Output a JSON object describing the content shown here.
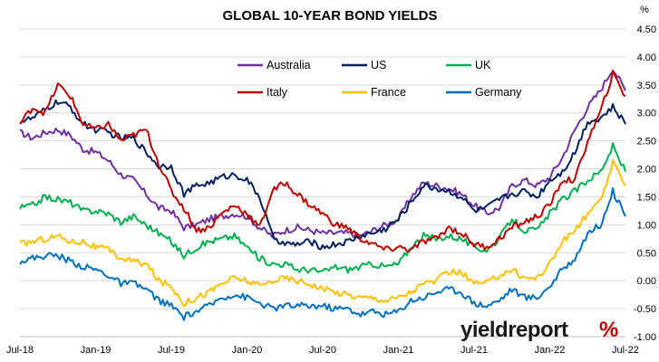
{
  "chart_data": {
    "type": "line",
    "title": "GLOBAL 10-YEAR BOND YIELDS",
    "unit_label": "%",
    "xlabel": "",
    "ylabel": "",
    "ylim": [
      -1.0,
      4.5
    ],
    "y_ticks": [
      -1.0,
      -0.5,
      0.0,
      0.5,
      1.0,
      1.5,
      2.0,
      2.5,
      3.0,
      3.5,
      4.0,
      4.5
    ],
    "y_tick_labels": [
      "-1.00",
      "-0.50",
      "0.00",
      "0.50",
      "1.00",
      "1.50",
      "2.00",
      "2.50",
      "3.00",
      "3.50",
      "4.00",
      "4.50"
    ],
    "x_ticks": [
      "2018-07",
      "2019-01",
      "2019-07",
      "2020-01",
      "2020-07",
      "2021-01",
      "2021-07",
      "2022-01",
      "2022-07"
    ],
    "x_tick_labels": [
      "Jul-18",
      "Jan-19",
      "Jul-19",
      "Jan-20",
      "Jul-20",
      "Jan-21",
      "Jul-21",
      "Jan-22",
      "Jul-22"
    ],
    "x_range": [
      "2018-07",
      "2022-07"
    ],
    "grid": {
      "horizontal": true,
      "vertical": false
    },
    "legend_position": "top-center",
    "x": [
      "2018-07",
      "2018-08",
      "2018-09",
      "2018-10",
      "2018-11",
      "2018-12",
      "2019-01",
      "2019-02",
      "2019-03",
      "2019-04",
      "2019-05",
      "2019-06",
      "2019-07",
      "2019-08",
      "2019-09",
      "2019-10",
      "2019-11",
      "2019-12",
      "2020-01",
      "2020-02",
      "2020-03",
      "2020-04",
      "2020-05",
      "2020-06",
      "2020-07",
      "2020-08",
      "2020-09",
      "2020-10",
      "2020-11",
      "2020-12",
      "2021-01",
      "2021-02",
      "2021-03",
      "2021-04",
      "2021-05",
      "2021-06",
      "2021-07",
      "2021-08",
      "2021-09",
      "2021-10",
      "2021-11",
      "2021-12",
      "2022-01",
      "2022-02",
      "2022-03",
      "2022-04",
      "2022-05",
      "2022-06",
      "2022-07"
    ],
    "series": [
      {
        "name": "Australia",
        "color": "#7030A0",
        "values": [
          2.65,
          2.55,
          2.65,
          2.7,
          2.6,
          2.35,
          2.3,
          2.15,
          1.9,
          1.8,
          1.55,
          1.3,
          1.25,
          0.95,
          1.0,
          1.1,
          1.15,
          1.2,
          1.15,
          0.95,
          0.8,
          0.9,
          0.95,
          0.9,
          0.85,
          0.85,
          0.85,
          0.8,
          0.9,
          1.0,
          1.1,
          1.5,
          1.75,
          1.7,
          1.65,
          1.55,
          1.35,
          1.2,
          1.3,
          1.7,
          1.8,
          1.7,
          1.85,
          2.2,
          2.7,
          3.1,
          3.4,
          3.8,
          3.4
        ]
      },
      {
        "name": "US",
        "color": "#002060",
        "values": [
          2.85,
          2.9,
          3.05,
          3.2,
          3.1,
          2.8,
          2.7,
          2.65,
          2.55,
          2.55,
          2.3,
          2.05,
          2.05,
          1.55,
          1.7,
          1.75,
          1.85,
          1.9,
          1.8,
          1.5,
          0.8,
          0.65,
          0.65,
          0.7,
          0.6,
          0.65,
          0.7,
          0.8,
          0.85,
          0.93,
          1.1,
          1.4,
          1.7,
          1.65,
          1.6,
          1.5,
          1.25,
          1.3,
          1.45,
          1.55,
          1.6,
          1.5,
          1.8,
          1.95,
          2.3,
          2.85,
          2.9,
          3.1,
          2.8
        ]
      },
      {
        "name": "UK",
        "color": "#00B050",
        "values": [
          1.3,
          1.35,
          1.5,
          1.45,
          1.4,
          1.25,
          1.25,
          1.2,
          1.05,
          1.15,
          1.0,
          0.85,
          0.7,
          0.45,
          0.6,
          0.7,
          0.75,
          0.8,
          0.6,
          0.4,
          0.3,
          0.3,
          0.2,
          0.2,
          0.15,
          0.25,
          0.2,
          0.25,
          0.3,
          0.25,
          0.3,
          0.6,
          0.8,
          0.75,
          0.8,
          0.75,
          0.6,
          0.55,
          0.75,
          1.1,
          0.9,
          0.9,
          1.2,
          1.45,
          1.6,
          1.8,
          1.95,
          2.4,
          1.95
        ]
      },
      {
        "name": "Italy",
        "color": "#C00000",
        "values": [
          2.8,
          3.1,
          3.0,
          3.5,
          3.3,
          2.8,
          2.7,
          2.8,
          2.5,
          2.6,
          2.7,
          2.1,
          1.6,
          1.3,
          0.9,
          0.95,
          1.2,
          1.35,
          1.2,
          0.95,
          1.6,
          1.75,
          1.55,
          1.35,
          1.2,
          1.0,
          0.95,
          0.75,
          0.65,
          0.55,
          0.6,
          0.55,
          0.7,
          0.75,
          0.95,
          0.85,
          0.65,
          0.6,
          0.75,
          0.95,
          1.05,
          1.15,
          1.35,
          1.8,
          1.8,
          2.5,
          3.0,
          3.7,
          3.3
        ]
      },
      {
        "name": "France",
        "color": "#FFC000",
        "values": [
          0.65,
          0.7,
          0.75,
          0.8,
          0.7,
          0.7,
          0.6,
          0.55,
          0.4,
          0.35,
          0.3,
          0.0,
          -0.1,
          -0.4,
          -0.3,
          -0.2,
          -0.05,
          0.05,
          0.0,
          -0.1,
          0.0,
          0.05,
          0.0,
          -0.05,
          -0.15,
          -0.2,
          -0.25,
          -0.3,
          -0.3,
          -0.35,
          -0.3,
          -0.2,
          -0.05,
          0.0,
          0.15,
          0.15,
          -0.05,
          -0.05,
          0.1,
          0.2,
          0.05,
          0.05,
          0.3,
          0.7,
          0.9,
          1.2,
          1.4,
          2.1,
          1.7
        ]
      },
      {
        "name": "Germany",
        "color": "#0070C0",
        "values": [
          0.35,
          0.4,
          0.45,
          0.45,
          0.35,
          0.25,
          0.2,
          0.1,
          -0.05,
          -0.05,
          -0.15,
          -0.35,
          -0.45,
          -0.65,
          -0.55,
          -0.45,
          -0.3,
          -0.25,
          -0.3,
          -0.4,
          -0.5,
          -0.45,
          -0.45,
          -0.45,
          -0.45,
          -0.5,
          -0.5,
          -0.6,
          -0.55,
          -0.6,
          -0.55,
          -0.35,
          -0.3,
          -0.2,
          -0.15,
          -0.2,
          -0.4,
          -0.45,
          -0.35,
          -0.15,
          -0.3,
          -0.3,
          -0.1,
          0.2,
          0.4,
          0.85,
          1.0,
          1.6,
          1.15
        ]
      }
    ]
  },
  "brand": {
    "text": "yieldreport",
    "symbol": "%"
  }
}
